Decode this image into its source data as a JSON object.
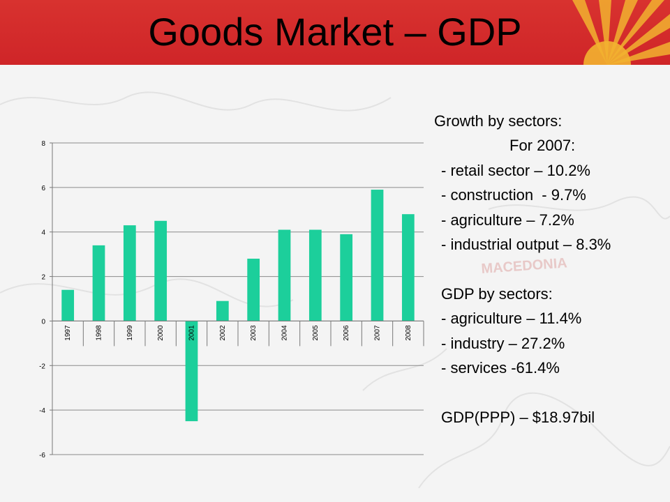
{
  "slide": {
    "title": "Goods Market – GDP",
    "colors": {
      "header": "#d02528",
      "sun_rays": "#f2b230",
      "bars": "#1ccf9b"
    }
  },
  "chart_data": {
    "type": "bar",
    "categories": [
      "1997",
      "1998",
      "1999",
      "2000",
      "2001",
      "2002",
      "2003",
      "2004",
      "2005",
      "2006",
      "2007",
      "2008"
    ],
    "values": [
      1.4,
      3.4,
      4.3,
      4.5,
      -4.5,
      0.9,
      2.8,
      4.1,
      4.1,
      3.9,
      5.9,
      4.8
    ],
    "yticks": [
      "8",
      "6",
      "4",
      "2",
      "0",
      "-2",
      "-4",
      "-6"
    ],
    "ylim": [
      -6,
      8
    ],
    "grid": true,
    "title": "",
    "xlabel": "",
    "ylabel": ""
  },
  "side": {
    "growth_heading": "Growth by sectors:",
    "growth_year": "For 2007:",
    "growth_items": [
      "- retail sector – 10.2%",
      "- construction  - 9.7%",
      "- agriculture – 7.2%",
      "- industrial output – 8.3%"
    ],
    "gdp_heading": "GDP by sectors:",
    "gdp_items": [
      "- agriculture – 11.4%",
      "- industry – 27.2%",
      "- services -61.4%"
    ],
    "gdp_ppp": "GDP(PPP) – $18.97bil"
  }
}
